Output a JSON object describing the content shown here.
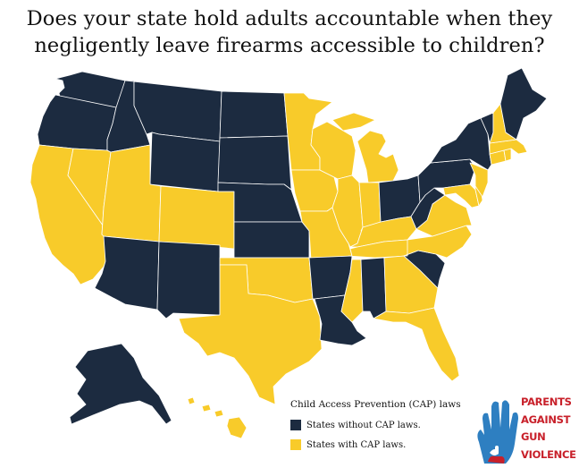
{
  "title": {
    "line1": "Does your state hold adults accountable when they",
    "line2": "negligently leave firearms accessible to children?"
  },
  "colors": {
    "no_cap": "#1c2b40",
    "cap": "#f8cb2a",
    "border": "#ffffff",
    "logo_red": "#c8202a",
    "logo_blue": "#2e7fc1"
  },
  "legend": {
    "title": "Child Access Prevention (CAP) laws",
    "items": [
      {
        "label": "States without CAP laws.",
        "color": "#1c2b40"
      },
      {
        "label": "States with CAP laws.",
        "color": "#f8cb2a"
      }
    ]
  },
  "logo": {
    "lines": [
      "Parents",
      "Against",
      "Gun",
      "Violence"
    ],
    "icon": "hand-icon"
  },
  "states": {
    "without_cap": [
      "WA",
      "OR",
      "ID",
      "MT",
      "WY",
      "ND",
      "SD",
      "NE",
      "KS",
      "AZ",
      "NM",
      "AR",
      "LA",
      "AL",
      "SC",
      "WV",
      "OH",
      "PA",
      "NY",
      "VT",
      "ME",
      "AK"
    ],
    "with_cap": [
      "CA",
      "NV",
      "UT",
      "CO",
      "OK",
      "TX",
      "MN",
      "IA",
      "MO",
      "WI",
      "IL",
      "MI",
      "IN",
      "KY",
      "TN",
      "MS",
      "GA",
      "FL",
      "NC",
      "VA",
      "MD",
      "DE",
      "NJ",
      "CT",
      "RI",
      "MA",
      "NH",
      "HI"
    ]
  }
}
